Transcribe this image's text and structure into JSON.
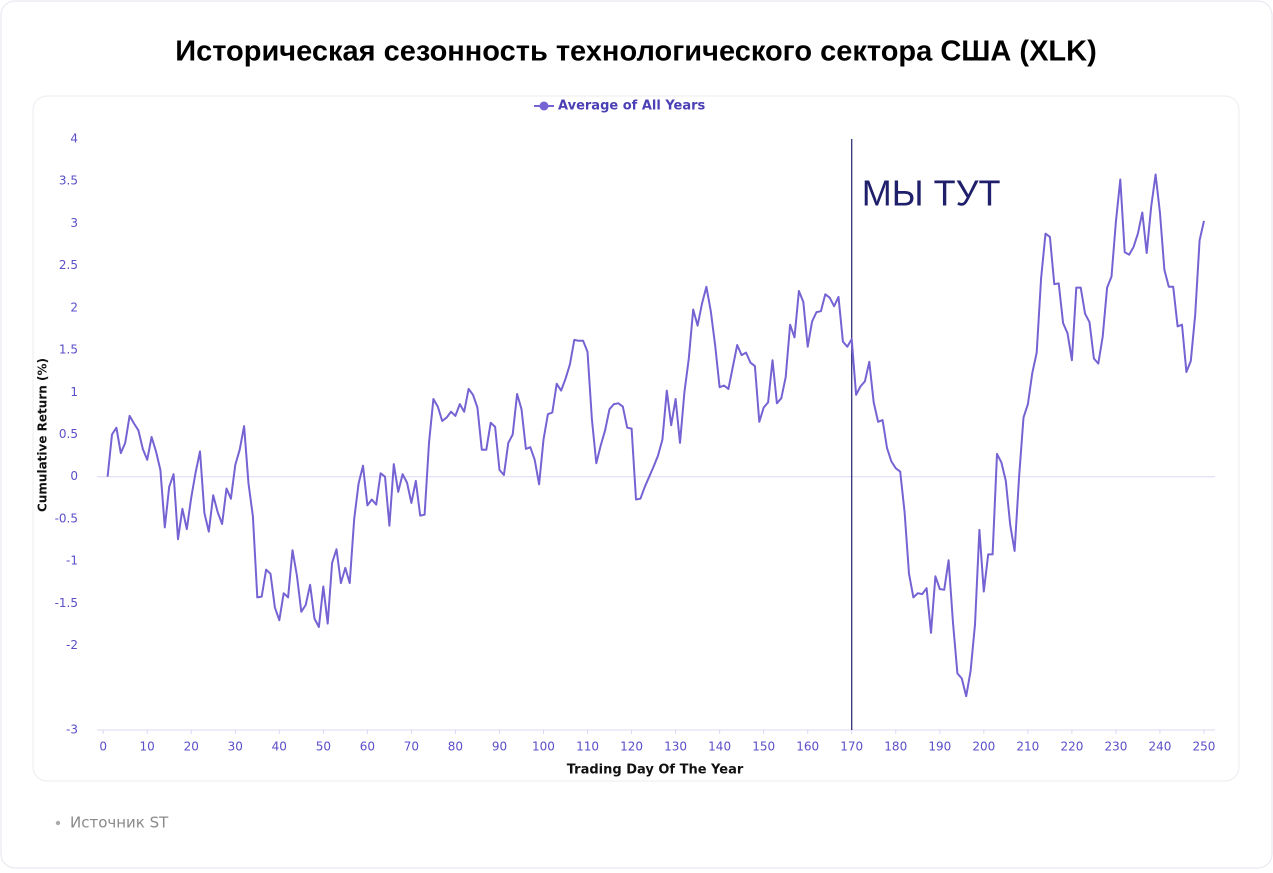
{
  "chart_data": {
    "type": "line",
    "title": "Историческая сезонность технологического сектора США (XLK)",
    "xlabel": "Trading Day Of The Year",
    "ylabel": "Cumulative Return (%)",
    "source": "Источник ST",
    "legend": "top",
    "grid": false,
    "annotations": [
      {
        "x": 170,
        "text": "МЫ ТУТ",
        "color": "#1f1f6b"
      }
    ],
    "xlim": [
      -1.4,
      252.5
    ],
    "xticks": [
      0,
      10,
      20,
      30,
      40,
      50,
      60,
      70,
      80,
      90,
      100,
      110,
      120,
      130,
      140,
      150,
      160,
      170,
      180,
      190,
      200,
      210,
      220,
      230,
      240,
      250
    ],
    "ylim": [
      -3,
      4
    ],
    "yticks": [
      4,
      3.5,
      3,
      2.5,
      2,
      1.5,
      1,
      0.5,
      0,
      -0.5,
      -1,
      -1.5,
      -2,
      -3
    ],
    "x": [
      1,
      2,
      3,
      4,
      5,
      6,
      7,
      8,
      9,
      10,
      11,
      12,
      13,
      14,
      15,
      16,
      17,
      18,
      19,
      20,
      21,
      22,
      23,
      24,
      25,
      26,
      27,
      28,
      29,
      30,
      31,
      32,
      33,
      34,
      35,
      36,
      37,
      38,
      39,
      40,
      41,
      42,
      43,
      44,
      45,
      46,
      47,
      48,
      49,
      50,
      51,
      52,
      53,
      54,
      55,
      56,
      57,
      58,
      59,
      60,
      61,
      62,
      63,
      64,
      65,
      66,
      67,
      68,
      69,
      70,
      71,
      72,
      73,
      74,
      75,
      76,
      77,
      78,
      79,
      80,
      81,
      82,
      83,
      84,
      85,
      86,
      87,
      88,
      89,
      90,
      91,
      92,
      93,
      94,
      95,
      96,
      97,
      98,
      99,
      100,
      101,
      102,
      103,
      104,
      105,
      106,
      107,
      108,
      109,
      110,
      111,
      112,
      113,
      114,
      115,
      116,
      117,
      118,
      119,
      120,
      121,
      122,
      123,
      124,
      125,
      126,
      127,
      128,
      129,
      130,
      131,
      132,
      133,
      134,
      135,
      136,
      137,
      138,
      139,
      140,
      141,
      142,
      143,
      144,
      145,
      146,
      147,
      148,
      149,
      150,
      151,
      152,
      153,
      154,
      155,
      156,
      157,
      158,
      159,
      160,
      161,
      162,
      163,
      164,
      165,
      166,
      167,
      168,
      169,
      170,
      171,
      172,
      173,
      174,
      175,
      176,
      177,
      178,
      179,
      180,
      181,
      182,
      183,
      184,
      185,
      186,
      187,
      188,
      189,
      190,
      191,
      192,
      193,
      194,
      195,
      196,
      197,
      198,
      199,
      200,
      201,
      202,
      203,
      204,
      205,
      206,
      207,
      208,
      209,
      210,
      211,
      212,
      213,
      214,
      215,
      216,
      217,
      218,
      219,
      220,
      221,
      222,
      223,
      224,
      225,
      226,
      227,
      228,
      229,
      230,
      231,
      232,
      233,
      234,
      235,
      236,
      237,
      238,
      239,
      240,
      241,
      242,
      243,
      244,
      245,
      246,
      247,
      248,
      249,
      250
    ],
    "series": [
      {
        "name": "Average of All Years",
        "color": "#7563d3",
        "values": [
          0,
          0.5,
          0.58,
          0.28,
          0.4,
          0.72,
          0.63,
          0.55,
          0.33,
          0.2,
          0.47,
          0.3,
          0.08,
          -0.6,
          -0.12,
          0.03,
          -0.74,
          -0.38,
          -0.62,
          -0.25,
          0.05,
          0.3,
          -0.43,
          -0.65,
          -0.22,
          -0.42,
          -0.56,
          -0.14,
          -0.26,
          0.14,
          0.32,
          0.6,
          -0.08,
          -0.47,
          -1.43,
          -1.42,
          -1.1,
          -1.15,
          -1.55,
          -1.7,
          -1.38,
          -1.43,
          -0.87,
          -1.17,
          -1.6,
          -1.52,
          -1.28,
          -1.68,
          -1.78,
          -1.3,
          -1.74,
          -1.02,
          -0.86,
          -1.26,
          -1.08,
          -1.26,
          -0.5,
          -0.08,
          0.13,
          -0.34,
          -0.27,
          -0.33,
          0.04,
          0,
          -0.58,
          0.15,
          -0.18,
          0.03,
          -0.07,
          -0.31,
          -0.05,
          -0.46,
          -0.45,
          0.4,
          0.92,
          0.83,
          0.66,
          0.7,
          0.77,
          0.72,
          0.86,
          0.77,
          1.04,
          0.97,
          0.82,
          0.32,
          0.32,
          0.64,
          0.59,
          0.08,
          0.02,
          0.4,
          0.5,
          0.98,
          0.8,
          0.33,
          0.35,
          0.2,
          -0.09,
          0.44,
          0.74,
          0.76,
          1.1,
          1.02,
          1.16,
          1.33,
          1.62,
          1.61,
          1.61,
          1.48,
          0.68,
          0.16,
          0.37,
          0.55,
          0.8,
          0.86,
          0.87,
          0.83,
          0.58,
          0.57,
          -0.27,
          -0.26,
          -0.12,
          0,
          0.12,
          0.25,
          0.44,
          1.02,
          0.61,
          0.92,
          0.4,
          1,
          1.4,
          1.98,
          1.79,
          2.05,
          2.25,
          1.96,
          1.55,
          1.06,
          1.08,
          1.04,
          1.3,
          1.56,
          1.44,
          1.47,
          1.35,
          1.31,
          0.65,
          0.82,
          0.88,
          1.38,
          0.87,
          0.93,
          1.18,
          1.8,
          1.65,
          2.2,
          2.07,
          1.54,
          1.84,
          1.95,
          1.96,
          2.16,
          2.12,
          2.02,
          2.13,
          1.6,
          1.54,
          1.63,
          0.97,
          1.07,
          1.13,
          1.36,
          0.88,
          0.65,
          0.67,
          0.34,
          0.18,
          0.1,
          0.06,
          -0.42,
          -1.15,
          -1.43,
          -1.38,
          -1.39,
          -1.32,
          -1.85,
          -1.18,
          -1.33,
          -1.34,
          -0.99,
          -1.73,
          -2.33,
          -2.39,
          -2.6,
          -2.3,
          -1.75,
          -0.63,
          -1.36,
          -0.92,
          -0.92,
          0.27,
          0.17,
          -0.05,
          -0.57,
          -0.88,
          0,
          0.7,
          0.86,
          1.23,
          1.47,
          2.35,
          2.88,
          2.84,
          2.28,
          2.29,
          1.82,
          1.7,
          1.38,
          2.24,
          2.24,
          1.93,
          1.83,
          1.4,
          1.34,
          1.66,
          2.24,
          2.37,
          3.02,
          3.52,
          2.66,
          2.63,
          2.72,
          2.88,
          3.13,
          2.65,
          3.2,
          3.58,
          3.12,
          2.45,
          2.25,
          2.25,
          1.78,
          1.8,
          1.24,
          1.37,
          1.92,
          2.8,
          3.03
        ]
      }
    ]
  }
}
